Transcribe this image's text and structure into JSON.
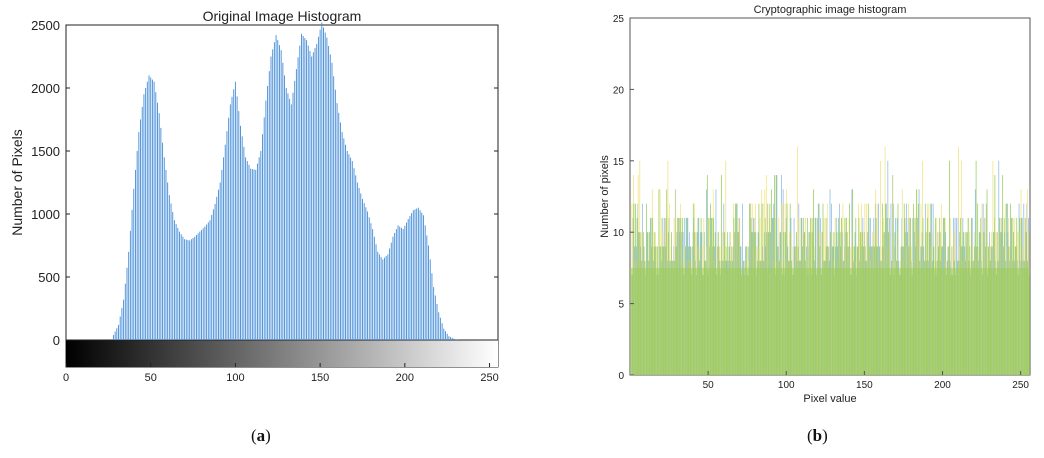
{
  "chart_data": [
    {
      "type": "bar",
      "title": "Original Image Histogram",
      "xlabel": "",
      "ylabel": "Number of Pixels",
      "xlim": [
        0,
        255
      ],
      "ylim": [
        -230,
        2500
      ],
      "x_ticks": [
        0,
        50,
        100,
        150,
        200,
        250
      ],
      "y_ticks": [
        0,
        500,
        1000,
        1500,
        2000,
        2500
      ],
      "grid": false,
      "legend": "none",
      "bar_color": "#4a90d9",
      "colorbar": "grayscale 0-255 gradient below the x axis",
      "x": [
        25,
        28,
        31,
        34,
        37,
        40,
        43,
        46,
        49,
        52,
        55,
        58,
        61,
        64,
        67,
        70,
        73,
        76,
        79,
        82,
        85,
        88,
        91,
        94,
        97,
        100,
        103,
        106,
        109,
        112,
        115,
        118,
        121,
        124,
        127,
        130,
        133,
        136,
        139,
        142,
        145,
        148,
        151,
        154,
        157,
        160,
        163,
        166,
        169,
        172,
        175,
        178,
        181,
        184,
        187,
        190,
        193,
        196,
        199,
        202,
        205,
        208,
        211,
        214,
        217,
        220,
        223,
        226,
        229,
        232
      ],
      "values": [
        0,
        40,
        120,
        320,
        700,
        1200,
        1650,
        1950,
        2100,
        2050,
        1800,
        1450,
        1150,
        950,
        860,
        800,
        790,
        820,
        860,
        900,
        950,
        1080,
        1250,
        1550,
        1870,
        2050,
        1700,
        1450,
        1360,
        1350,
        1500,
        1900,
        2250,
        2420,
        2300,
        2000,
        1870,
        2150,
        2430,
        2380,
        2250,
        2350,
        2520,
        2400,
        2200,
        1880,
        1650,
        1500,
        1420,
        1250,
        1120,
        1020,
        880,
        700,
        640,
        680,
        820,
        910,
        880,
        960,
        1030,
        1050,
        990,
        750,
        420,
        220,
        90,
        30,
        10,
        0
      ]
    },
    {
      "type": "bar",
      "title": "Cryptographic image histogram",
      "xlabel": "Pixel value",
      "ylabel": "Number of pixels",
      "xlim": [
        0,
        256
      ],
      "ylim": [
        0,
        25
      ],
      "x_ticks": [
        50,
        100,
        150,
        200,
        250
      ],
      "y_ticks": [
        0,
        5,
        10,
        15,
        20,
        25
      ],
      "grid": false,
      "legend": "none",
      "series_colors": [
        "#7fb3e0",
        "#f0e070",
        "#8cc84b"
      ],
      "typical_max": 11,
      "typical_min": 7,
      "peaks": [
        {
          "x": 2,
          "value": 14
        },
        {
          "x": 24,
          "value": 15
        },
        {
          "x": 61,
          "value": 15
        },
        {
          "x": 107,
          "value": 16
        },
        {
          "x": 163,
          "value": 16
        },
        {
          "x": 210,
          "value": 16
        },
        {
          "x": 212,
          "value": 15
        },
        {
          "x": 232,
          "value": 15
        },
        {
          "x": 250,
          "value": 13
        }
      ]
    }
  ],
  "captions": {
    "a": "a",
    "b": "b"
  }
}
